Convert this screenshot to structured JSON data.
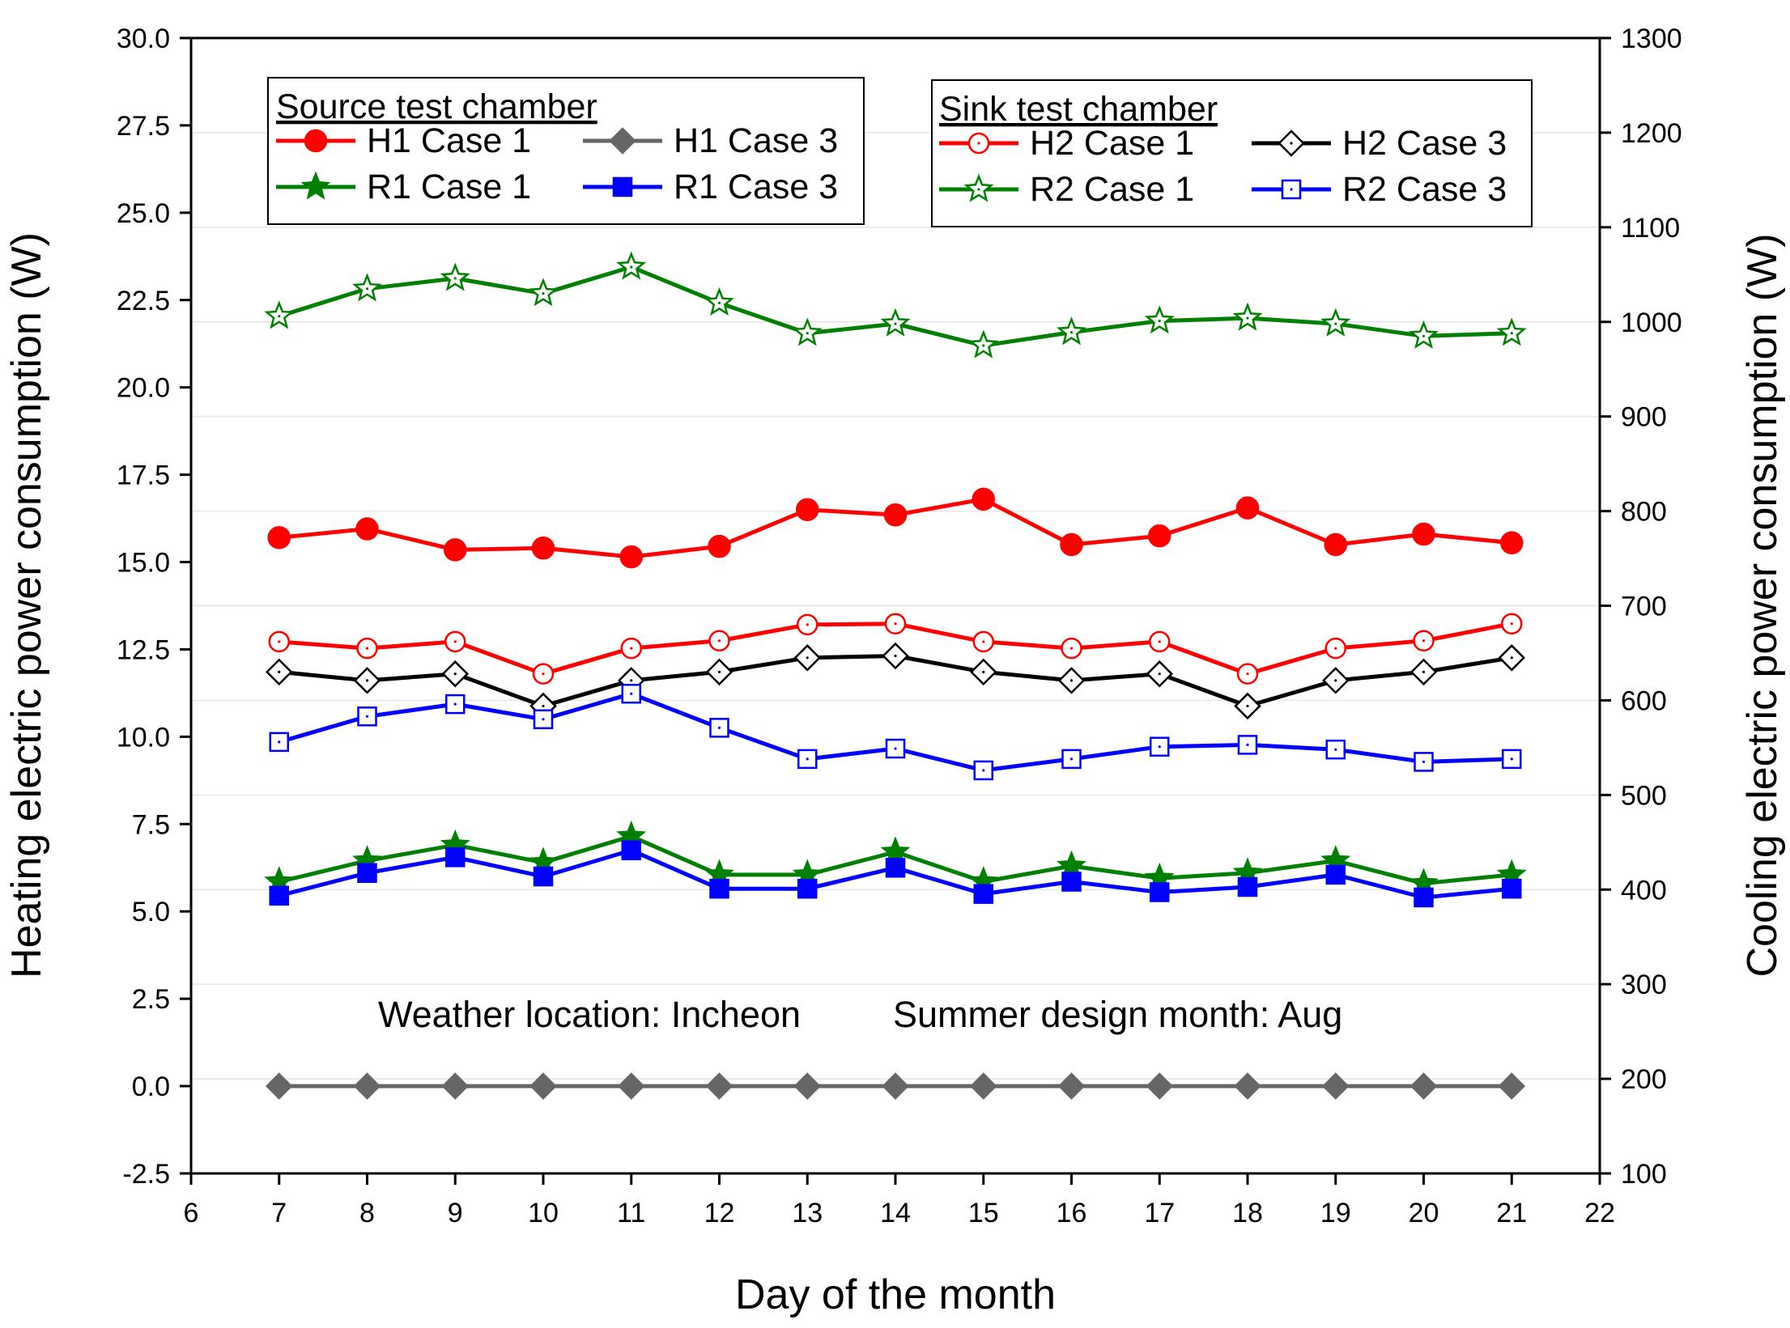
{
  "chart_data": {
    "type": "line",
    "xlabel": "Day of the month",
    "ylabel_left": "Heating electric power consumption (W)",
    "ylabel_right": "Cooling electric power consumption (W)",
    "xlim": [
      6,
      22
    ],
    "ylim_left": [
      -2.5,
      30.0
    ],
    "ylim_right": [
      100,
      1300
    ],
    "x_ticks": [
      6,
      7,
      8,
      9,
      10,
      11,
      12,
      13,
      14,
      15,
      16,
      17,
      18,
      19,
      20,
      21,
      22
    ],
    "x_tick_labels": [
      "6",
      "7",
      "8",
      "9",
      "10",
      "11",
      "12",
      "13",
      "14",
      "15",
      "16",
      "17",
      "18",
      "19",
      "20",
      "21",
      "22"
    ],
    "y_left_ticks": [
      -2.5,
      0.0,
      2.5,
      5.0,
      7.5,
      10.0,
      12.5,
      15.0,
      17.5,
      20.0,
      22.5,
      25.0,
      27.5,
      30.0
    ],
    "y_left_tick_labels": [
      "-2.5",
      "0.0",
      "2.5",
      "5.0",
      "7.5",
      "10.0",
      "12.5",
      "15.0",
      "17.5",
      "20.0",
      "22.5",
      "25.0",
      "27.5",
      "30.0"
    ],
    "y_right_ticks": [
      100,
      200,
      300,
      400,
      500,
      600,
      700,
      800,
      900,
      1000,
      1100,
      1200,
      1300
    ],
    "y_right_tick_labels": [
      "100",
      "200",
      "300",
      "400",
      "500",
      "600",
      "700",
      "800",
      "900",
      "1000",
      "1100",
      "1200",
      "1300"
    ],
    "grid": true,
    "x": [
      7,
      8,
      9,
      10,
      11,
      12,
      13,
      14,
      15,
      16,
      17,
      18,
      19,
      20,
      21
    ],
    "series": [
      {
        "name": "H1 Case 1",
        "axis": "left",
        "color": "#ff0000",
        "marker": "circle",
        "filled": true,
        "values": [
          15.7,
          15.95,
          15.35,
          15.4,
          15.15,
          15.45,
          16.5,
          16.35,
          16.8,
          15.5,
          15.75,
          16.55,
          15.5,
          15.8,
          15.55
        ]
      },
      {
        "name": "H1 Case 3",
        "axis": "left",
        "color": "#666666",
        "marker": "diamond",
        "filled": true,
        "values": [
          0,
          0,
          0,
          0,
          0,
          0,
          0,
          0,
          0,
          0,
          0,
          0,
          0,
          0,
          0
        ]
      },
      {
        "name": "R1 Case 1",
        "axis": "left",
        "color": "#008000",
        "marker": "star",
        "filled": true,
        "values": [
          5.85,
          6.45,
          6.9,
          6.4,
          7.15,
          6.05,
          6.05,
          6.7,
          5.85,
          6.3,
          5.95,
          6.1,
          6.45,
          5.8,
          6.05
        ]
      },
      {
        "name": "R1 Case 3",
        "axis": "left",
        "color": "#0000ff",
        "marker": "square",
        "filled": true,
        "values": [
          5.45,
          6.1,
          6.55,
          6.0,
          6.75,
          5.65,
          5.65,
          6.25,
          5.5,
          5.85,
          5.55,
          5.7,
          6.05,
          5.4,
          5.65
        ]
      },
      {
        "name": "H2 Case 1",
        "axis": "right",
        "color": "#ff0000",
        "marker": "circle",
        "filled": false,
        "values": [
          662,
          655,
          662,
          628,
          655,
          663,
          680,
          681,
          662,
          655,
          662,
          628,
          655,
          663,
          681
        ]
      },
      {
        "name": "H2 Case 3",
        "axis": "right",
        "color": "#000000",
        "marker": "diamond",
        "filled": false,
        "values": [
          630,
          621,
          628,
          594,
          621,
          630,
          645,
          647,
          630,
          621,
          628,
          594,
          621,
          630,
          645
        ]
      },
      {
        "name": "R2 Case 1",
        "axis": "right",
        "color": "#008000",
        "marker": "star",
        "filled": false,
        "values": [
          1006,
          1035,
          1046,
          1030,
          1058,
          1020,
          988,
          998,
          975,
          989,
          1001,
          1004,
          998,
          985,
          988
        ]
      },
      {
        "name": "R2 Case 3",
        "axis": "right",
        "color": "#0000ff",
        "marker": "square",
        "filled": false,
        "values": [
          556,
          583,
          596,
          580,
          607,
          571,
          538,
          549,
          526,
          538,
          551,
          553,
          548,
          535,
          538
        ]
      }
    ],
    "legends": [
      {
        "title": "Source test chamber",
        "placement": "top-left",
        "entries": [
          "H1 Case 1",
          "H1 Case 3",
          "R1 Case 1",
          "R1 Case 3"
        ]
      },
      {
        "title": "Sink test chamber",
        "placement": "top-right",
        "entries": [
          "H2 Case 1",
          "H2 Case 3",
          "R2 Case 1",
          "R2 Case 3"
        ]
      }
    ],
    "annotations": [
      "Weather location: Incheon",
      "Summer design month: Aug"
    ]
  }
}
